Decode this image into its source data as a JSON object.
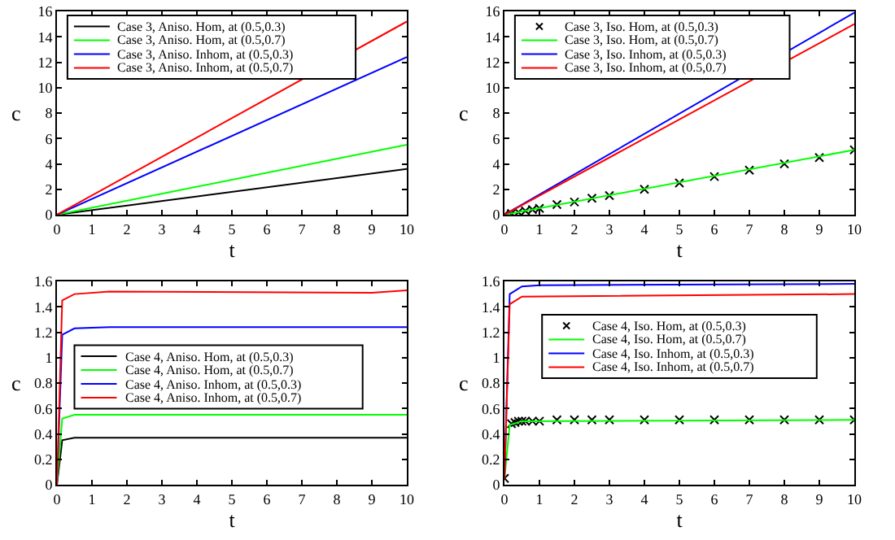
{
  "chart_data": [
    {
      "type": "line",
      "xlabel": "t",
      "ylabel": "c",
      "xlim": [
        0,
        10
      ],
      "ylim": [
        0,
        16
      ],
      "xticks": [
        0,
        1,
        2,
        3,
        4,
        5,
        6,
        7,
        8,
        9,
        10
      ],
      "yticks": [
        0,
        2,
        4,
        6,
        8,
        10,
        12,
        14,
        16
      ],
      "grid": false,
      "legend": "top left",
      "series": [
        {
          "name": "Case 3, Aniso. Hom, at (0.5,0.3)",
          "color": "#000000",
          "x": [
            0,
            10
          ],
          "values": [
            0,
            3.6
          ]
        },
        {
          "name": "Case 3, Aniso. Hom, at (0.5,0.7)",
          "color": "#00ff00",
          "x": [
            0,
            10
          ],
          "values": [
            0,
            5.5
          ]
        },
        {
          "name": "Case 3, Aniso. Inhom, at (0.5,0.3)",
          "color": "#0000ff",
          "x": [
            0,
            10
          ],
          "values": [
            0,
            12.4
          ]
        },
        {
          "name": "Case 3, Aniso. Inhom, at (0.5,0.7)",
          "color": "#ff0000",
          "x": [
            0,
            10
          ],
          "values": [
            0,
            15.2
          ]
        }
      ]
    },
    {
      "type": "line",
      "xlabel": "t",
      "ylabel": "c",
      "xlim": [
        0,
        10
      ],
      "ylim": [
        0,
        16
      ],
      "xticks": [
        0,
        1,
        2,
        3,
        4,
        5,
        6,
        7,
        8,
        9,
        10
      ],
      "yticks": [
        0,
        2,
        4,
        6,
        8,
        10,
        12,
        14,
        16
      ],
      "grid": false,
      "legend": "top left",
      "series": [
        {
          "name": "Case 3, Iso. Hom, at (0.5,0.3)",
          "type": "scatter",
          "marker": "cross",
          "color": "#000000",
          "x": [
            0,
            0.2,
            0.4,
            0.6,
            0.8,
            1,
            1.5,
            2,
            2.5,
            3,
            4,
            5,
            6,
            7,
            8,
            9,
            10
          ],
          "values": [
            0,
            0.1,
            0.2,
            0.3,
            0.4,
            0.5,
            0.8,
            1,
            1.3,
            1.5,
            2,
            2.5,
            3,
            3.5,
            4,
            4.5,
            5.1
          ]
        },
        {
          "name": "Case 3, Iso. Hom, at (0.5,0.7)",
          "color": "#00ff00",
          "x": [
            0,
            10
          ],
          "values": [
            0,
            5.1
          ]
        },
        {
          "name": "Case 3, Iso. Inhom, at (0.5,0.3)",
          "color": "#0000ff",
          "x": [
            0,
            10
          ],
          "values": [
            0,
            15.9
          ]
        },
        {
          "name": "Case 3, Iso. Inhom, at (0.5,0.7)",
          "color": "#ff0000",
          "x": [
            0,
            10
          ],
          "values": [
            0,
            15.0
          ]
        }
      ]
    },
    {
      "type": "line",
      "xlabel": "t",
      "ylabel": "c",
      "xlim": [
        0,
        10
      ],
      "ylim": [
        0,
        1.6
      ],
      "xticks": [
        0,
        1,
        2,
        3,
        4,
        5,
        6,
        7,
        8,
        9,
        10
      ],
      "yticks": [
        0,
        0.2,
        0.4,
        0.6,
        0.8,
        1,
        1.2,
        1.4,
        1.6
      ],
      "grid": false,
      "legend": "left",
      "series": [
        {
          "name": "Case 4, Aniso. Hom, at (0.5,0.3)",
          "color": "#000000",
          "x": [
            0,
            0.15,
            0.5,
            10
          ],
          "values": [
            0,
            0.35,
            0.37,
            0.37
          ]
        },
        {
          "name": "Case 4, Aniso. Hom, at (0.5,0.7)",
          "color": "#00ff00",
          "x": [
            0,
            0.15,
            0.5,
            10
          ],
          "values": [
            0,
            0.52,
            0.55,
            0.55
          ]
        },
        {
          "name": "Case 4, Aniso. Inhom, at (0.5,0.3)",
          "color": "#0000ff",
          "x": [
            0,
            0.15,
            0.5,
            1.5,
            10
          ],
          "values": [
            0,
            1.18,
            1.23,
            1.24,
            1.24
          ]
        },
        {
          "name": "Case 4, Aniso. Inhom, at (0.5,0.7)",
          "color": "#ff0000",
          "x": [
            0,
            0.15,
            0.5,
            1.5,
            9,
            10
          ],
          "values": [
            0,
            1.45,
            1.5,
            1.52,
            1.51,
            1.53
          ]
        }
      ]
    },
    {
      "type": "line",
      "xlabel": "t",
      "ylabel": "c",
      "xlim": [
        0,
        10
      ],
      "ylim": [
        0,
        1.6
      ],
      "xticks": [
        0,
        1,
        2,
        3,
        4,
        5,
        6,
        7,
        8,
        9,
        10
      ],
      "yticks": [
        0,
        0.2,
        0.4,
        0.6,
        0.8,
        1,
        1.2,
        1.4,
        1.6
      ],
      "grid": false,
      "legend": "center",
      "series": [
        {
          "name": "Case 4, Iso. Hom, at (0.5,0.3)",
          "type": "scatter",
          "marker": "cross",
          "color": "#000000",
          "x": [
            0,
            0.2,
            0.3,
            0.4,
            0.5,
            0.6,
            0.8,
            1,
            1.5,
            2,
            2.5,
            3,
            4,
            5,
            6,
            7,
            8,
            9,
            10
          ],
          "values": [
            0.05,
            0.48,
            0.49,
            0.5,
            0.5,
            0.5,
            0.5,
            0.5,
            0.51,
            0.51,
            0.51,
            0.51,
            0.51,
            0.51,
            0.51,
            0.51,
            0.51,
            0.51,
            0.51
          ]
        },
        {
          "name": "Case 4, Iso. Hom, at (0.5,0.7)",
          "color": "#00ff00",
          "x": [
            0,
            0.15,
            0.5,
            10
          ],
          "values": [
            0.05,
            0.47,
            0.5,
            0.51
          ]
        },
        {
          "name": "Case 4, Iso. Inhom, at (0.5,0.3)",
          "color": "#0000ff",
          "x": [
            0,
            0.15,
            0.5,
            1,
            10
          ],
          "values": [
            0.05,
            1.5,
            1.56,
            1.57,
            1.58
          ]
        },
        {
          "name": "Case 4, Iso. Inhom, at (0.5,0.7)",
          "color": "#ff0000",
          "x": [
            0,
            0.15,
            0.5,
            10
          ],
          "values": [
            0.05,
            1.42,
            1.48,
            1.5
          ]
        }
      ]
    }
  ]
}
